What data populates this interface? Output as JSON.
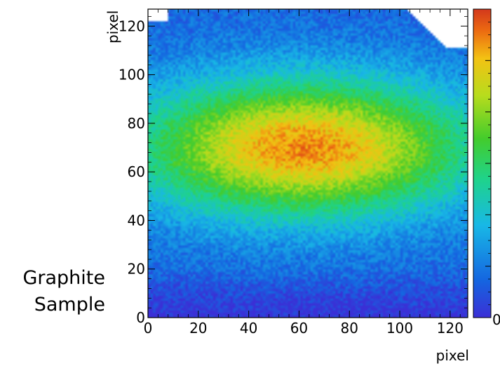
{
  "sample_label": {
    "line1": "Graphite",
    "line2": "Sample"
  },
  "chart_data": {
    "type": "heatmap",
    "title": "",
    "xlabel": "pixel",
    "ylabel": "pixel",
    "xlim": [
      0,
      127
    ],
    "ylim": [
      0,
      127
    ],
    "x_ticks": [
      0,
      20,
      40,
      60,
      80,
      100,
      120
    ],
    "y_ticks": [
      0,
      20,
      40,
      60,
      80,
      100,
      120
    ],
    "colorbar": {
      "min_label": "0",
      "colormap": "rainbow (blue to red)",
      "colors": [
        "#3b2fd6",
        "#1565e0",
        "#18b8e6",
        "#1fd38a",
        "#43cc2c",
        "#b7dc1d",
        "#f3c213",
        "#ec6a11",
        "#d3381c"
      ]
    },
    "distribution": {
      "peak_x": 62,
      "peak_y": 70,
      "sigma_x": 48,
      "sigma_y": 20,
      "peak_level": 0.9,
      "noise": "grainy"
    },
    "blank_regions": [
      "top-left corner",
      "top-right corner triangle"
    ],
    "grid": false
  }
}
